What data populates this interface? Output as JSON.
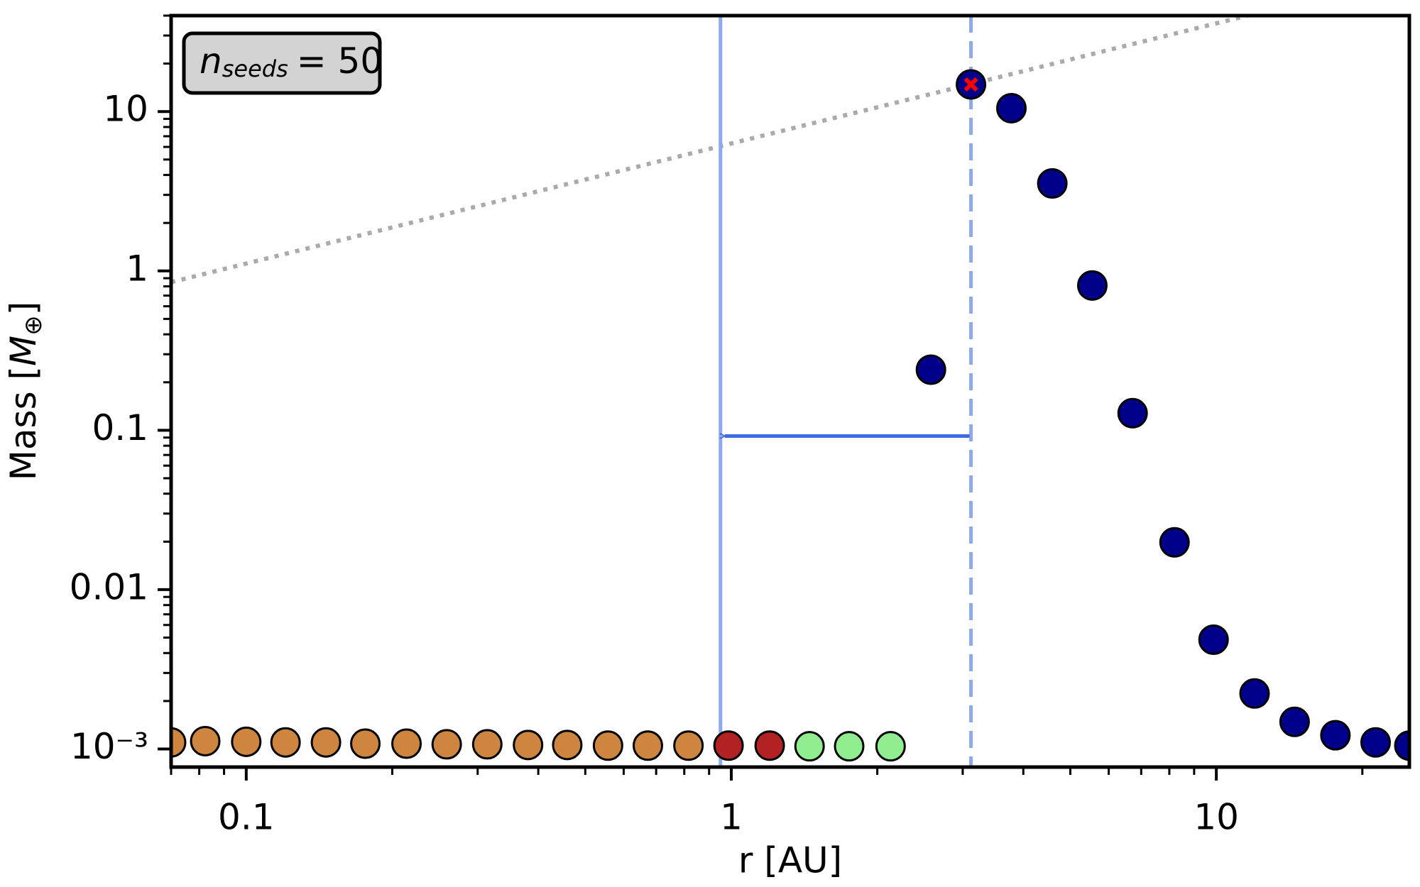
{
  "chart_data": {
    "type": "scatter",
    "xlabel": "r [AU]",
    "ylabel": {
      "text": "Mass [",
      "symbol": "M",
      "subscript": "⊕",
      "end": "]"
    },
    "log_x": true,
    "log_y": true,
    "xlim": [
      0.07,
      25
    ],
    "ylim": [
      0.00077,
      40
    ],
    "xticks": [
      0.1,
      1,
      10
    ],
    "xminorticks": [
      0.07,
      0.08,
      0.09,
      0.2,
      0.3,
      0.4,
      0.5,
      0.6,
      0.7,
      0.8,
      0.9,
      2,
      3,
      4,
      5,
      6,
      7,
      8,
      9,
      20
    ],
    "yticks": [
      {
        "value": 0.001,
        "label": "10⁻³"
      },
      0.01,
      0.1,
      1,
      10
    ],
    "yminorticks": [
      0.002,
      0.003,
      0.004,
      0.005,
      0.006,
      0.007,
      0.008,
      0.009,
      0.02,
      0.03,
      0.04,
      0.05,
      0.06,
      0.07,
      0.08,
      0.09,
      0.2,
      0.3,
      0.4,
      0.5,
      0.6,
      0.7,
      0.8,
      0.9,
      2,
      3,
      4,
      5,
      6,
      7,
      8,
      9,
      20,
      30,
      40
    ],
    "series": [
      {
        "color": "#cd853f",
        "x": [
          0.07,
          0.0823,
          0.1,
          0.1205,
          0.146,
          0.176,
          0.214,
          0.259,
          0.314,
          0.381,
          0.459,
          0.557,
          0.673,
          0.816
        ],
        "y": [
          0.0011,
          0.00112,
          0.00111,
          0.0011,
          0.0011,
          0.00108,
          0.00108,
          0.00107,
          0.00107,
          0.00106,
          0.00106,
          0.00105,
          0.00105,
          0.00105
        ]
      },
      {
        "color": "#b22222",
        "x": [
          0.987,
          1.2
        ],
        "y": [
          0.00105,
          0.00105
        ]
      },
      {
        "color": "#90ee90",
        "x": [
          1.45,
          1.75,
          2.13
        ],
        "y": [
          0.00104,
          0.00104,
          0.00104
        ]
      },
      {
        "color": "#00008b",
        "x": [
          2.58,
          3.12,
          3.78,
          4.59,
          5.55,
          6.72,
          8.2,
          9.87,
          11.99,
          14.5,
          17.6,
          21.3,
          25
        ],
        "y": [
          0.24,
          14.8,
          10.5,
          3.54,
          0.81,
          0.128,
          0.0198,
          0.00485,
          0.00223,
          0.00148,
          0.00122,
          0.0011,
          0.00105
        ]
      }
    ],
    "highlight": {
      "x": 3.12,
      "y": 14.8,
      "color": "#ff0000"
    },
    "reference_line": {
      "x": [
        0.07,
        11.6
      ],
      "y": [
        0.85,
        40
      ],
      "color": "#aaaaaa"
    },
    "vlines": [
      {
        "x": 0.95,
        "color": "#8ea9ea",
        "style": "solid"
      },
      {
        "x": 3.12,
        "color": "#8ea9ea",
        "style": "dashed"
      }
    ],
    "arrow": {
      "x": [
        3.1,
        0.97
      ],
      "y": 0.092,
      "color": "#4169e1"
    },
    "annotation": {
      "symbol": "n",
      "subscript": "seeds",
      "text": "= 50"
    }
  }
}
